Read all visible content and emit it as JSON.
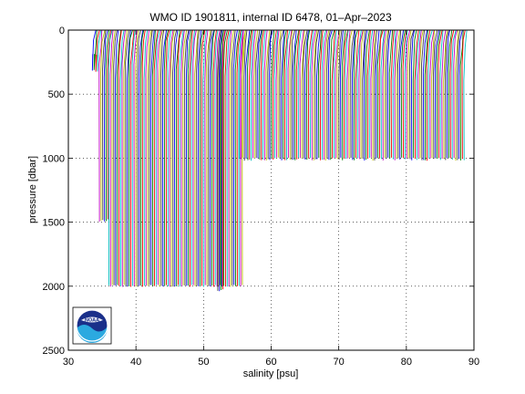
{
  "chart_data": {
    "type": "line",
    "title": "WMO ID 1901811, internal ID 6478, 01–Apr–2023",
    "xlabel": "salinity [psu]",
    "ylabel": "pressure [dbar]",
    "xlim": [
      30,
      90
    ],
    "ylim": [
      0,
      2500
    ],
    "y_reversed": true,
    "grid": true,
    "grid_style": "dotted",
    "x_ticks": [
      30,
      40,
      50,
      60,
      70,
      80,
      90
    ],
    "y_ticks": [
      0,
      500,
      1000,
      1500,
      2000,
      2500
    ],
    "profile_offset_psu": 0.25,
    "color_cycle": [
      "#0000ff",
      "#008000",
      "#ff0000",
      "#00bfbf",
      "#bf00bf",
      "#bfbf00",
      "#404040"
    ],
    "profile_groups": [
      {
        "count": 4,
        "start_x": 33.6,
        "max_depth": 200
      },
      {
        "count": 6,
        "start_x": 34.6,
        "max_depth": 1500
      },
      {
        "count": 80,
        "start_x": 36.0,
        "max_depth": 2005
      },
      {
        "count": 4,
        "start_x": 52.1,
        "max_depth": 2040
      },
      {
        "count": 134,
        "start_x": 55.3,
        "max_depth": 1020
      }
    ],
    "logo": "noaa-logo"
  }
}
